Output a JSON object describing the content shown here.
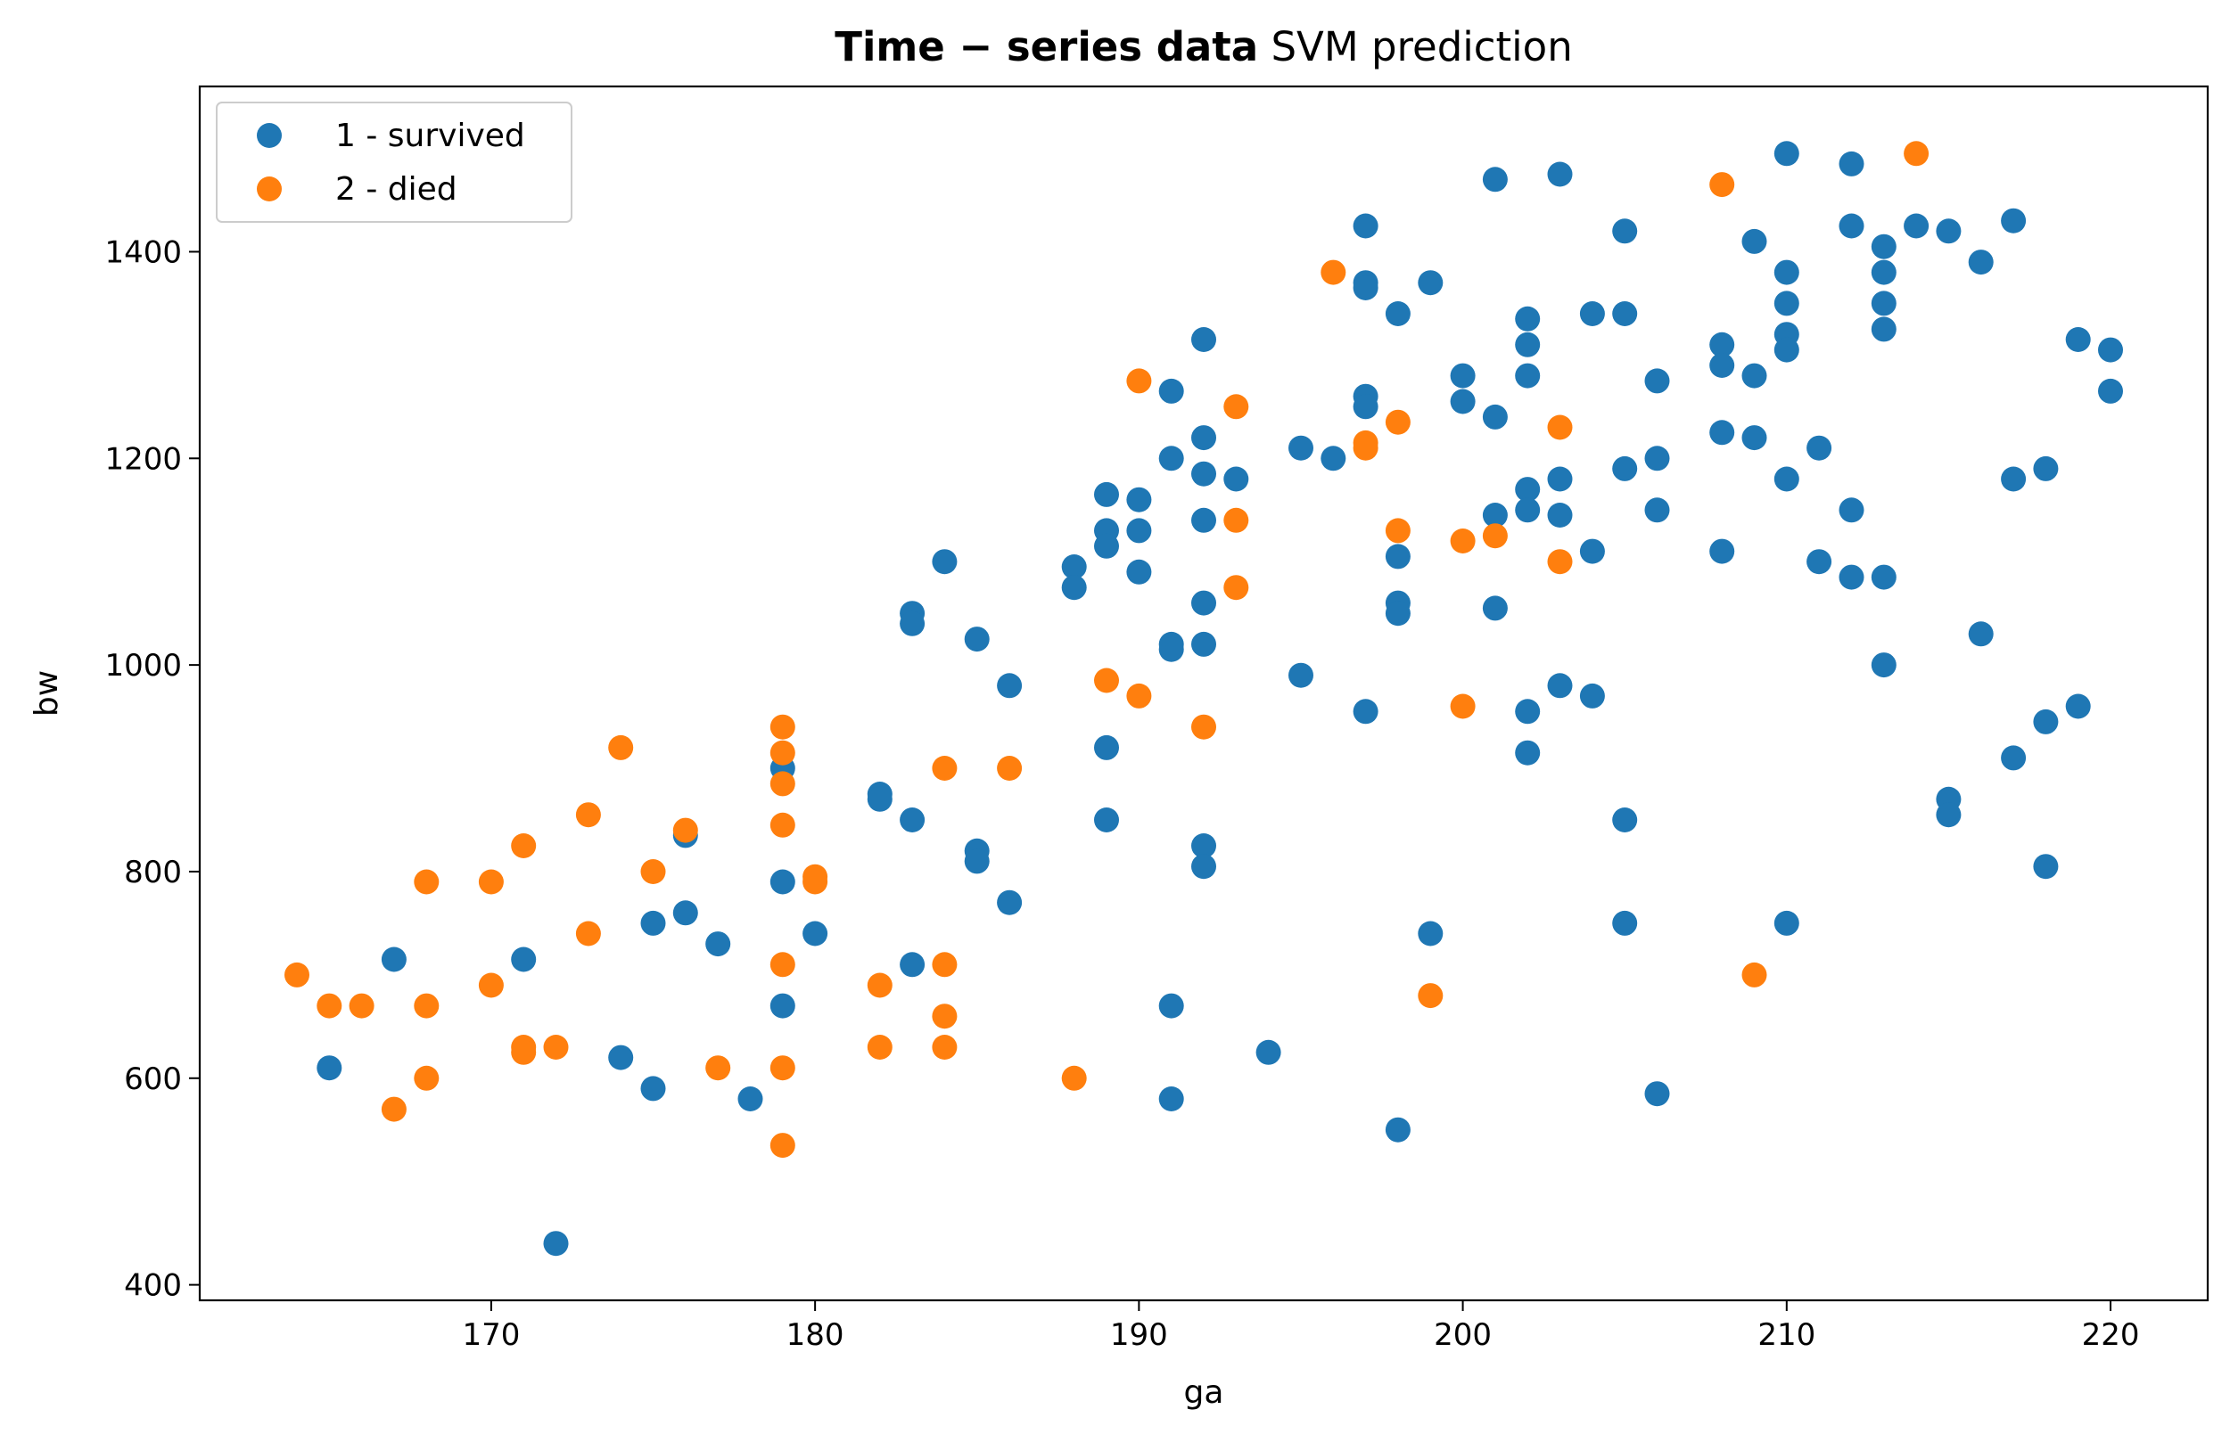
{
  "chart_data": {
    "type": "scatter",
    "title": {
      "bold_part": "Time − series data",
      "normal_part": " SVM prediction"
    },
    "xlabel": "ga",
    "ylabel": "bw",
    "xlim": [
      161,
      223
    ],
    "ylim": [
      385,
      1560
    ],
    "xticks": [
      170,
      180,
      190,
      200,
      210,
      220
    ],
    "yticks": [
      400,
      600,
      800,
      1000,
      1200,
      1400
    ],
    "grid": false,
    "legend_position": "upper-left",
    "series": [
      {
        "name": "1 - survived",
        "color": "#1f77b4",
        "points": [
          [
            165,
            610
          ],
          [
            167,
            715
          ],
          [
            171,
            715
          ],
          [
            172,
            440
          ],
          [
            174,
            620
          ],
          [
            175,
            750
          ],
          [
            175,
            590
          ],
          [
            176,
            760
          ],
          [
            176,
            835
          ],
          [
            177,
            730
          ],
          [
            178,
            580
          ],
          [
            179,
            900
          ],
          [
            179,
            790
          ],
          [
            179,
            670
          ],
          [
            180,
            740
          ],
          [
            182,
            875
          ],
          [
            182,
            870
          ],
          [
            183,
            1050
          ],
          [
            183,
            1040
          ],
          [
            183,
            850
          ],
          [
            183,
            710
          ],
          [
            184,
            1100
          ],
          [
            185,
            1025
          ],
          [
            185,
            820
          ],
          [
            185,
            810
          ],
          [
            186,
            980
          ],
          [
            186,
            770
          ],
          [
            188,
            1095
          ],
          [
            188,
            1075
          ],
          [
            189,
            1165
          ],
          [
            189,
            1130
          ],
          [
            189,
            1115
          ],
          [
            189,
            920
          ],
          [
            189,
            850
          ],
          [
            190,
            1160
          ],
          [
            190,
            1130
          ],
          [
            190,
            1090
          ],
          [
            191,
            1265
          ],
          [
            191,
            1200
          ],
          [
            191,
            1020
          ],
          [
            191,
            1015
          ],
          [
            191,
            670
          ],
          [
            191,
            580
          ],
          [
            192,
            1315
          ],
          [
            192,
            1220
          ],
          [
            192,
            1185
          ],
          [
            192,
            1140
          ],
          [
            192,
            1060
          ],
          [
            192,
            1020
          ],
          [
            192,
            825
          ],
          [
            192,
            805
          ],
          [
            193,
            1180
          ],
          [
            194,
            625
          ],
          [
            195,
            1210
          ],
          [
            195,
            990
          ],
          [
            196,
            1200
          ],
          [
            197,
            1425
          ],
          [
            197,
            1370
          ],
          [
            197,
            1365
          ],
          [
            197,
            1260
          ],
          [
            197,
            1250
          ],
          [
            197,
            955
          ],
          [
            198,
            1340
          ],
          [
            198,
            1105
          ],
          [
            198,
            1060
          ],
          [
            198,
            1050
          ],
          [
            198,
            550
          ],
          [
            199,
            1370
          ],
          [
            199,
            740
          ],
          [
            200,
            1280
          ],
          [
            200,
            1255
          ],
          [
            201,
            1470
          ],
          [
            201,
            1240
          ],
          [
            201,
            1145
          ],
          [
            201,
            1055
          ],
          [
            202,
            1335
          ],
          [
            202,
            1310
          ],
          [
            202,
            1280
          ],
          [
            202,
            1170
          ],
          [
            202,
            1150
          ],
          [
            202,
            955
          ],
          [
            202,
            915
          ],
          [
            203,
            1475
          ],
          [
            203,
            1180
          ],
          [
            203,
            1145
          ],
          [
            203,
            980
          ],
          [
            204,
            1340
          ],
          [
            204,
            1110
          ],
          [
            204,
            970
          ],
          [
            205,
            1420
          ],
          [
            205,
            1340
          ],
          [
            205,
            1190
          ],
          [
            205,
            850
          ],
          [
            205,
            750
          ],
          [
            206,
            1275
          ],
          [
            206,
            1200
          ],
          [
            206,
            1150
          ],
          [
            206,
            585
          ],
          [
            208,
            1310
          ],
          [
            208,
            1290
          ],
          [
            208,
            1225
          ],
          [
            208,
            1110
          ],
          [
            209,
            1410
          ],
          [
            209,
            1280
          ],
          [
            209,
            1220
          ],
          [
            210,
            1495
          ],
          [
            210,
            1380
          ],
          [
            210,
            1350
          ],
          [
            210,
            1320
          ],
          [
            210,
            1305
          ],
          [
            210,
            1180
          ],
          [
            210,
            750
          ],
          [
            211,
            1210
          ],
          [
            211,
            1100
          ],
          [
            212,
            1485
          ],
          [
            212,
            1425
          ],
          [
            212,
            1150
          ],
          [
            212,
            1085
          ],
          [
            213,
            1405
          ],
          [
            213,
            1380
          ],
          [
            213,
            1350
          ],
          [
            213,
            1325
          ],
          [
            213,
            1085
          ],
          [
            213,
            1000
          ],
          [
            214,
            1425
          ],
          [
            215,
            1420
          ],
          [
            215,
            870
          ],
          [
            215,
            855
          ],
          [
            216,
            1390
          ],
          [
            216,
            1030
          ],
          [
            217,
            1430
          ],
          [
            217,
            1180
          ],
          [
            217,
            910
          ],
          [
            218,
            1190
          ],
          [
            218,
            945
          ],
          [
            218,
            805
          ],
          [
            219,
            1315
          ],
          [
            219,
            960
          ],
          [
            220,
            1305
          ],
          [
            220,
            1265
          ]
        ]
      },
      {
        "name": "2 - died",
        "color": "#ff7f0e",
        "points": [
          [
            164,
            700
          ],
          [
            165,
            670
          ],
          [
            166,
            670
          ],
          [
            167,
            570
          ],
          [
            168,
            790
          ],
          [
            168,
            670
          ],
          [
            168,
            600
          ],
          [
            170,
            790
          ],
          [
            170,
            690
          ],
          [
            171,
            825
          ],
          [
            171,
            630
          ],
          [
            171,
            625
          ],
          [
            172,
            630
          ],
          [
            173,
            855
          ],
          [
            173,
            740
          ],
          [
            174,
            920
          ],
          [
            175,
            800
          ],
          [
            176,
            840
          ],
          [
            177,
            610
          ],
          [
            179,
            940
          ],
          [
            179,
            915
          ],
          [
            179,
            885
          ],
          [
            179,
            845
          ],
          [
            179,
            710
          ],
          [
            179,
            610
          ],
          [
            179,
            535
          ],
          [
            180,
            795
          ],
          [
            180,
            790
          ],
          [
            182,
            690
          ],
          [
            182,
            630
          ],
          [
            184,
            900
          ],
          [
            184,
            710
          ],
          [
            184,
            660
          ],
          [
            184,
            630
          ],
          [
            186,
            900
          ],
          [
            188,
            600
          ],
          [
            189,
            985
          ],
          [
            190,
            1275
          ],
          [
            190,
            970
          ],
          [
            192,
            940
          ],
          [
            193,
            1250
          ],
          [
            193,
            1140
          ],
          [
            193,
            1075
          ],
          [
            196,
            1380
          ],
          [
            197,
            1215
          ],
          [
            197,
            1210
          ],
          [
            198,
            1235
          ],
          [
            198,
            1130
          ],
          [
            199,
            680
          ],
          [
            200,
            1120
          ],
          [
            200,
            960
          ],
          [
            201,
            1125
          ],
          [
            203,
            1230
          ],
          [
            203,
            1100
          ],
          [
            208,
            1465
          ],
          [
            209,
            700
          ],
          [
            214,
            1495
          ]
        ]
      }
    ]
  }
}
